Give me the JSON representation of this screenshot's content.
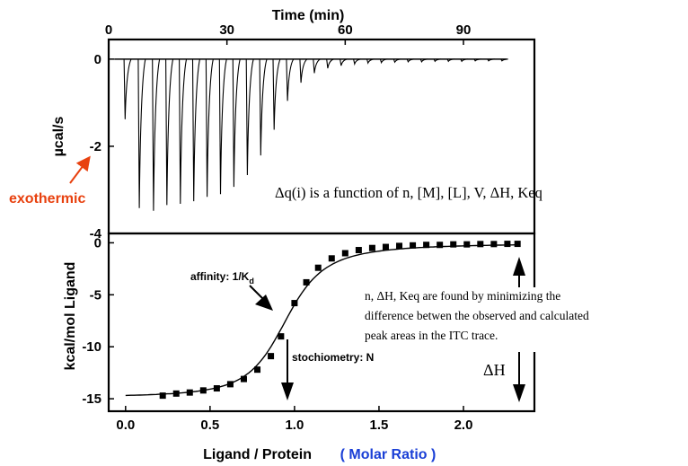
{
  "chart_data": [
    {
      "type": "line",
      "name": "raw-thermogram",
      "xlabel": "Time (min)",
      "ylabel": "µcal/s",
      "xlim": [
        0,
        108
      ],
      "ylim": [
        -4,
        0.45
      ],
      "x_ticks": [
        "0",
        "30",
        "60",
        "90"
      ],
      "y_ticks": [
        "0",
        "-2",
        "-4"
      ],
      "baseline": 0,
      "injections": [
        {
          "t": 3.9,
          "peak": -1.38
        },
        {
          "t": 7.5,
          "peak": -3.42
        },
        {
          "t": 11.1,
          "peak": -3.48
        },
        {
          "t": 14.5,
          "peak": -3.35
        },
        {
          "t": 17.9,
          "peak": -3.32
        },
        {
          "t": 21.3,
          "peak": -3.26
        },
        {
          "t": 24.7,
          "peak": -3.16
        },
        {
          "t": 28.1,
          "peak": -3.1
        },
        {
          "t": 31.5,
          "peak": -2.93
        },
        {
          "t": 34.9,
          "peak": -2.66
        },
        {
          "t": 38.3,
          "peak": -2.21
        },
        {
          "t": 41.7,
          "peak": -1.62
        },
        {
          "t": 45.1,
          "peak": -0.96
        },
        {
          "t": 48.5,
          "peak": -0.54
        },
        {
          "t": 51.9,
          "peak": -0.32
        },
        {
          "t": 55.3,
          "peak": -0.21
        },
        {
          "t": 58.7,
          "peak": -0.15
        },
        {
          "t": 62.1,
          "peak": -0.11
        },
        {
          "t": 65.5,
          "peak": -0.09
        },
        {
          "t": 68.9,
          "peak": -0.08
        },
        {
          "t": 72.3,
          "peak": -0.07
        },
        {
          "t": 75.7,
          "peak": -0.06
        },
        {
          "t": 79.1,
          "peak": -0.06
        },
        {
          "t": 82.5,
          "peak": -0.05
        },
        {
          "t": 85.9,
          "peak": -0.05
        },
        {
          "t": 89.3,
          "peak": -0.05
        },
        {
          "t": 92.7,
          "peak": -0.04
        },
        {
          "t": 96.1,
          "peak": -0.04
        },
        {
          "t": 99.5,
          "peak": -0.04
        }
      ],
      "annotations": {
        "exothermic": "exothermic",
        "equation": "Δq(i) is a function of  n, [M], [L], V, ΔH, Keq"
      },
      "colors": {
        "exothermic": "#e8410f",
        "trace": "#000000"
      }
    },
    {
      "type": "scatter",
      "name": "binding-isotherm",
      "xlabel": "Ligand / Protein",
      "xlabel_suffix": "( Molar Ratio )",
      "ylabel": "kcal/mol Ligand",
      "xlim": [
        -0.1,
        2.42
      ],
      "ylim": [
        -16.2,
        0.9
      ],
      "x_ticks": [
        "0.0",
        "0.5",
        "1.0",
        "1.5",
        "2.0"
      ],
      "y_ticks": [
        "0",
        "-5",
        "-10",
        "-15"
      ],
      "points": [
        {
          "x": 0.22,
          "y": -14.7
        },
        {
          "x": 0.3,
          "y": -14.5
        },
        {
          "x": 0.38,
          "y": -14.4
        },
        {
          "x": 0.46,
          "y": -14.2
        },
        {
          "x": 0.54,
          "y": -14.0
        },
        {
          "x": 0.62,
          "y": -13.6
        },
        {
          "x": 0.7,
          "y": -13.1
        },
        {
          "x": 0.78,
          "y": -12.2
        },
        {
          "x": 0.86,
          "y": -10.9
        },
        {
          "x": 0.92,
          "y": -9.0
        },
        {
          "x": 1.0,
          "y": -5.8
        },
        {
          "x": 1.07,
          "y": -3.8
        },
        {
          "x": 1.14,
          "y": -2.4
        },
        {
          "x": 1.22,
          "y": -1.5
        },
        {
          "x": 1.3,
          "y": -1.0
        },
        {
          "x": 1.38,
          "y": -0.7
        },
        {
          "x": 1.46,
          "y": -0.5
        },
        {
          "x": 1.54,
          "y": -0.4
        },
        {
          "x": 1.62,
          "y": -0.3
        },
        {
          "x": 1.7,
          "y": -0.25
        },
        {
          "x": 1.78,
          "y": -0.2
        },
        {
          "x": 1.86,
          "y": -0.2
        },
        {
          "x": 1.94,
          "y": -0.15
        },
        {
          "x": 2.02,
          "y": -0.15
        },
        {
          "x": 2.1,
          "y": -0.12
        },
        {
          "x": 2.18,
          "y": -0.12
        },
        {
          "x": 2.26,
          "y": -0.1
        },
        {
          "x": 2.32,
          "y": -0.1
        }
      ],
      "fit": {
        "x_start": 0.0,
        "x_end": 2.32,
        "dH": -14.8,
        "n": 0.95,
        "K": 3000000.0
      },
      "annotations": {
        "affinity": "affinity: 1/K",
        "affinity_sub": "d",
        "stoichiometry": "stochiometry: N",
        "dh": "ΔH",
        "note_lines": [
          "n, ΔH, Keq are found by minimizing the",
          "difference betwen the observed and calculated",
          "peak areas in the ITC trace."
        ]
      },
      "colors": {
        "molar_ratio": "#1a3fd6",
        "markers": "#000000"
      }
    }
  ]
}
